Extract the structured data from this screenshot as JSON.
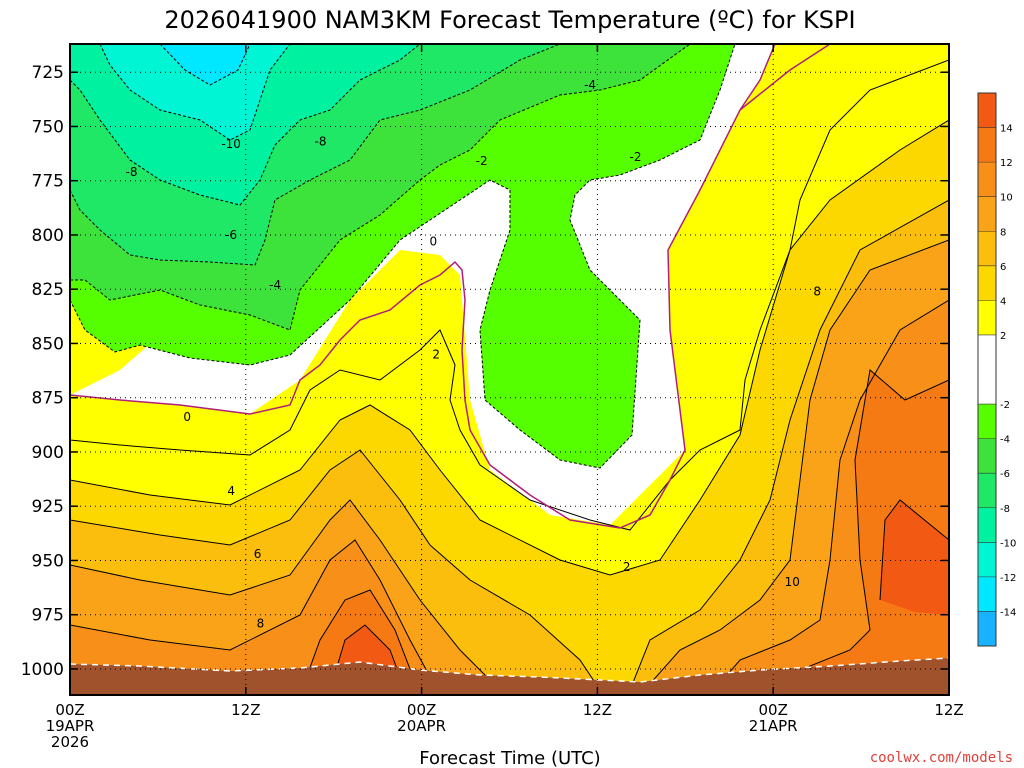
{
  "chart_data": {
    "type": "heatmap",
    "title": "2026041900 NAM3KM Forecast Temperature (ºC) for KSPI",
    "xlabel": "Forecast Time (UTC)",
    "ylabel": "",
    "x_range_hours": [
      0,
      60
    ],
    "y_range_hpa": [
      712,
      1012
    ],
    "x_ticks": [
      {
        "hour": 0,
        "lines": [
          "00Z",
          "19APR",
          "2026"
        ]
      },
      {
        "hour": 12,
        "lines": [
          "12Z"
        ]
      },
      {
        "hour": 24,
        "lines": [
          "00Z",
          "20APR"
        ]
      },
      {
        "hour": 36,
        "lines": [
          "12Z"
        ]
      },
      {
        "hour": 48,
        "lines": [
          "00Z",
          "21APR"
        ]
      },
      {
        "hour": 60,
        "lines": [
          "12Z"
        ]
      }
    ],
    "y_ticks": [
      725,
      750,
      775,
      800,
      825,
      850,
      875,
      900,
      925,
      950,
      975,
      1000
    ],
    "grid": true,
    "contour_labels": [
      {
        "text": "-4",
        "hour": 35.5,
        "hpa": 731
      },
      {
        "text": "-8",
        "hour": 17.1,
        "hpa": 757
      },
      {
        "text": "-10",
        "hour": 11.0,
        "hpa": 758
      },
      {
        "text": "-8",
        "hour": 4.2,
        "hpa": 771
      },
      {
        "text": "-2",
        "hour": 28.1,
        "hpa": 766
      },
      {
        "text": "-2",
        "hour": 38.6,
        "hpa": 764
      },
      {
        "text": "-6",
        "hour": 11.0,
        "hpa": 800
      },
      {
        "text": "-4",
        "hour": 14.0,
        "hpa": 823
      },
      {
        "text": "0",
        "hour": 24.8,
        "hpa": 803
      },
      {
        "text": "0",
        "hour": 8.0,
        "hpa": 884
      },
      {
        "text": "2",
        "hour": 25.0,
        "hpa": 855
      },
      {
        "text": "2",
        "hour": 38.0,
        "hpa": 953
      },
      {
        "text": "4",
        "hour": 11.0,
        "hpa": 918
      },
      {
        "text": "6",
        "hour": 12.8,
        "hpa": 947
      },
      {
        "text": "8",
        "hour": 13.0,
        "hpa": 979
      },
      {
        "text": "8",
        "hour": 51.0,
        "hpa": 826
      },
      {
        "text": "10",
        "hour": 49.3,
        "hpa": 960
      }
    ],
    "legend": {
      "placement": "right",
      "bins": [
        {
          "min": 14,
          "max": 16,
          "color": "#f25a14"
        },
        {
          "min": 12,
          "max": 14,
          "color": "#f57a14"
        },
        {
          "min": 10,
          "max": 12,
          "color": "#f88f18"
        },
        {
          "min": 8,
          "max": 10,
          "color": "#fba318"
        },
        {
          "min": 6,
          "max": 8,
          "color": "#fcbe0c"
        },
        {
          "min": 4,
          "max": 6,
          "color": "#fdd800"
        },
        {
          "min": 2,
          "max": 4,
          "color": "#ffff00"
        },
        {
          "min": -2,
          "max": 2,
          "color": "#ffffff"
        },
        {
          "min": -4,
          "max": -2,
          "color": "#55ff00"
        },
        {
          "min": -6,
          "max": -4,
          "color": "#3de23a"
        },
        {
          "min": -8,
          "max": -6,
          "color": "#1ee866"
        },
        {
          "min": -10,
          "max": -8,
          "color": "#00f2a0"
        },
        {
          "min": -12,
          "max": -10,
          "color": "#00f5d5"
        },
        {
          "min": -14,
          "max": -12,
          "color": "#00e8ff"
        },
        {
          "min": -16,
          "max": -14,
          "color": "#19b2ff"
        }
      ],
      "tick_labels": [
        "14",
        "12",
        "10",
        "8",
        "6",
        "4",
        "2",
        "-2",
        "-4",
        "-6",
        "-8",
        "-10",
        "-12",
        "-14"
      ]
    },
    "colors": {
      "ground": "#a0522d",
      "contour": "#000000",
      "zero_contour": "#b0207a"
    }
  },
  "footer": {
    "credit": "coolwx.com/models"
  }
}
